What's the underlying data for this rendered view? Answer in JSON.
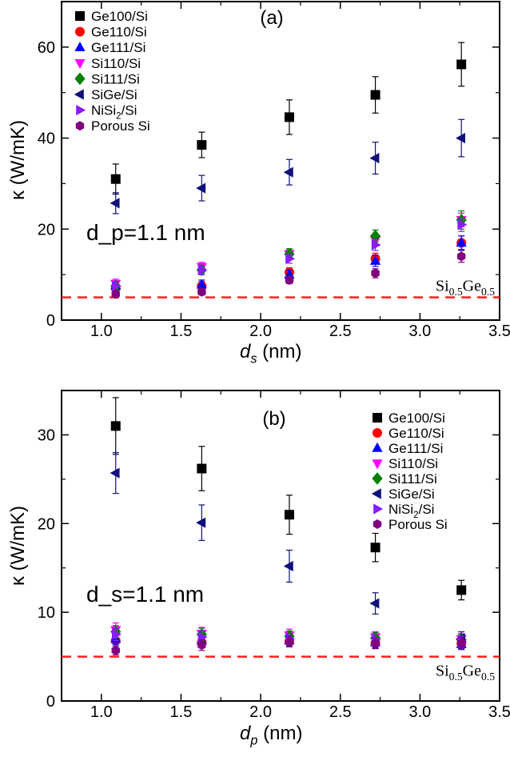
{
  "chart_data": [
    {
      "type": "scatter",
      "title": "(a)",
      "annotation": "d_p=1.1 nm",
      "annotation_parts": [
        "d",
        "p",
        "=1.1 nm"
      ],
      "xlabel_parts": [
        "d",
        "s",
        " (nm)"
      ],
      "ylabel": "κ (W/mK)",
      "xlim": [
        0.75,
        3.5
      ],
      "ylim": [
        0,
        70
      ],
      "xticks": [
        1.0,
        1.5,
        2.0,
        2.5,
        3.0,
        3.5
      ],
      "xtick_labels": [
        "1.0",
        "1.5",
        "2.0",
        "2.5",
        "3.0",
        "3.5"
      ],
      "yticks": [
        0,
        20,
        40,
        60
      ],
      "ytick_labels": [
        "0",
        "20",
        "40",
        "60"
      ],
      "reference_line": {
        "y": 5,
        "label_parts": [
          "Si",
          "0.5",
          "Ge",
          "0.5"
        ],
        "color": "#ff2020"
      },
      "legend_placement": "top-left",
      "x": [
        1.09,
        1.63,
        2.18,
        2.72,
        3.26
      ],
      "series": [
        {
          "name": "Ge100/Si",
          "marker": "square",
          "color": "#000000",
          "values": [
            31,
            38.5,
            44.6,
            49.5,
            56.2
          ],
          "err": [
            3.3,
            2.8,
            3.8,
            4.0,
            4.8
          ]
        },
        {
          "name": "Ge110/Si",
          "marker": "circle",
          "color": "#ff0000",
          "values": [
            7,
            7.5,
            10.5,
            13.5,
            17
          ],
          "err": [
            1,
            1,
            1,
            1.2,
            1.5
          ]
        },
        {
          "name": "Ge111/Si",
          "marker": "triangle-up",
          "color": "#0000ff",
          "values": [
            7.5,
            7.8,
            10,
            13,
            17
          ],
          "err": [
            1,
            1,
            1,
            1.2,
            1.5
          ]
        },
        {
          "name": "Si110/Si",
          "marker": "triangle-down",
          "color": "#ff00ff",
          "values": [
            8,
            11.7,
            14.5,
            17.5,
            22
          ],
          "err": [
            1,
            1,
            1,
            1.2,
            1.5
          ]
        },
        {
          "name": "Si111/Si",
          "marker": "diamond",
          "color": "#008000",
          "values": [
            7.5,
            11,
            14.5,
            18.5,
            22
          ],
          "err": [
            1,
            1,
            1.2,
            1.3,
            2
          ]
        },
        {
          "name": "SiGe/Si",
          "marker": "triangle-left",
          "color": "#10107a",
          "values": [
            25.7,
            29,
            32.5,
            35.6,
            40
          ],
          "err": [
            2.3,
            2.8,
            2.8,
            3.5,
            4.1
          ]
        },
        {
          "name": "NiSi2/Si",
          "name_parts": [
            "NiSi",
            "2",
            "/Si"
          ],
          "marker": "triangle-right",
          "color": "#8a1aff",
          "values": [
            7.5,
            11,
            13.5,
            16.5,
            21
          ],
          "err": [
            1,
            1,
            1,
            1.2,
            1.5
          ]
        },
        {
          "name": "Porous Si",
          "marker": "hexagon",
          "color": "#800080",
          "values": [
            5.7,
            6.2,
            8.8,
            10.3,
            14
          ],
          "err": [
            0.6,
            0.7,
            0.8,
            1,
            1.3
          ]
        }
      ]
    },
    {
      "type": "scatter",
      "title": "(b)",
      "annotation": "d_s=1.1 nm",
      "annotation_parts": [
        "d",
        "s",
        "=1.1 nm"
      ],
      "xlabel_parts": [
        "d",
        "p",
        " (nm)"
      ],
      "ylabel": "κ (W/mK)",
      "xlim": [
        0.75,
        3.5
      ],
      "ylim": [
        0,
        35
      ],
      "xticks": [
        1.0,
        1.5,
        2.0,
        2.5,
        3.0,
        3.5
      ],
      "xtick_labels": [
        "1.0",
        "1.5",
        "2.0",
        "2.5",
        "3.0",
        "3.5"
      ],
      "yticks": [
        0,
        10,
        20,
        30
      ],
      "ytick_labels": [
        "0",
        "10",
        "20",
        "30"
      ],
      "reference_line": {
        "y": 5,
        "label_parts": [
          "Si",
          "0.5",
          "Ge",
          "0.5"
        ],
        "color": "#ff2020"
      },
      "legend_placement": "top-right",
      "x": [
        1.09,
        1.63,
        2.18,
        2.72,
        3.26
      ],
      "series": [
        {
          "name": "Ge100/Si",
          "marker": "square",
          "color": "#000000",
          "values": [
            31,
            26.2,
            21,
            17.3,
            12.5
          ],
          "err": [
            3.2,
            2.5,
            2.2,
            1.6,
            1.1
          ]
        },
        {
          "name": "Ge110/Si",
          "marker": "circle",
          "color": "#ff0000",
          "values": [
            6.8,
            6.6,
            6.7,
            6.5,
            6.5
          ],
          "err": [
            0.6,
            0.6,
            0.6,
            0.6,
            0.6
          ]
        },
        {
          "name": "Ge111/Si",
          "marker": "triangle-up",
          "color": "#0000ff",
          "values": [
            7,
            6.8,
            6.8,
            6.6,
            6.4
          ],
          "err": [
            0.6,
            0.6,
            0.6,
            0.6,
            0.6
          ]
        },
        {
          "name": "Si110/Si",
          "marker": "triangle-down",
          "color": "#ff00ff",
          "values": [
            8,
            7.6,
            7.4,
            7.2,
            7
          ],
          "err": [
            0.8,
            0.7,
            0.7,
            0.6,
            0.6
          ]
        },
        {
          "name": "Si111/Si",
          "marker": "diamond",
          "color": "#008000",
          "values": [
            7.8,
            7.5,
            7.3,
            7.1,
            6.9
          ],
          "err": [
            0.7,
            0.7,
            0.6,
            0.6,
            0.6
          ]
        },
        {
          "name": "SiGe/Si",
          "marker": "triangle-left",
          "color": "#10107a",
          "values": [
            25.7,
            20.1,
            15.2,
            11,
            7
          ],
          "err": [
            2.3,
            2,
            1.8,
            1.2,
            0.8
          ]
        },
        {
          "name": "NiSi2/Si",
          "name_parts": [
            "NiSi",
            "2",
            "/Si"
          ],
          "marker": "triangle-right",
          "color": "#8a1aff",
          "values": [
            7.5,
            7.2,
            7,
            6.9,
            6.7
          ],
          "err": [
            0.7,
            0.7,
            0.6,
            0.6,
            0.6
          ]
        },
        {
          "name": "Porous Si",
          "marker": "hexagon",
          "color": "#800080",
          "values": [
            5.7,
            6.3,
            6.7,
            6.5,
            6.5
          ],
          "err": [
            0.5,
            0.6,
            0.6,
            0.6,
            0.6
          ]
        }
      ]
    }
  ]
}
